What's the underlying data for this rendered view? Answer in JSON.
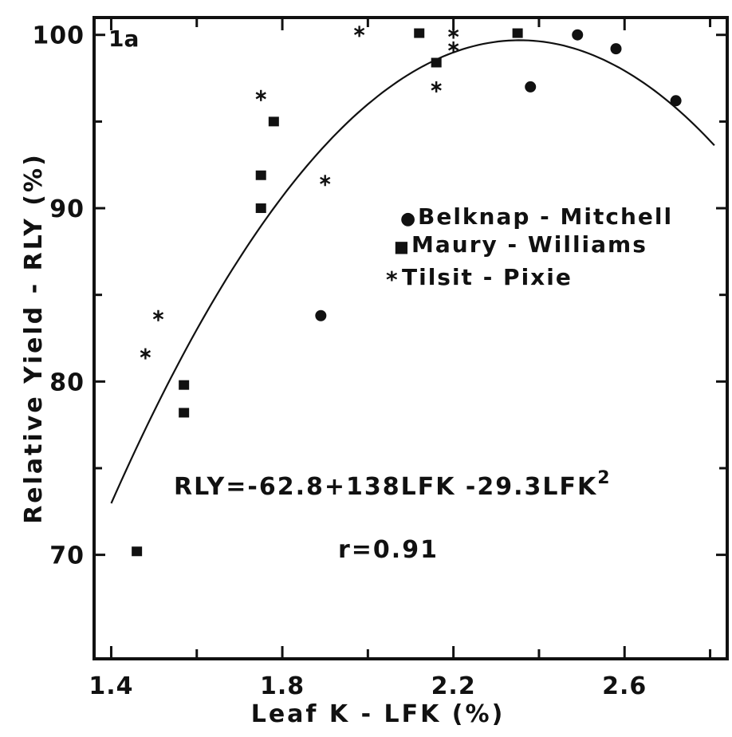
{
  "chart_data": {
    "type": "scatter",
    "panel_label": "1a",
    "xlabel": "Leaf K - LFK (%)",
    "ylabel": "Relative Yield - RLY (%)",
    "xlim": [
      1.36,
      2.84
    ],
    "ylim": [
      64,
      101
    ],
    "x_ticks": [
      "1.4",
      "1.8",
      "2.2",
      "2.6"
    ],
    "x_tick_values": [
      1.4,
      1.8,
      2.2,
      2.6
    ],
    "y_ticks": [
      "70",
      "80",
      "90",
      "100"
    ],
    "y_tick_values": [
      70,
      80,
      90,
      100
    ],
    "series": [
      {
        "name": "Belknap - Mitchell",
        "marker": "circle",
        "points": [
          [
            1.89,
            83.8
          ],
          [
            2.38,
            97.0
          ],
          [
            2.49,
            100.0
          ],
          [
            2.58,
            99.2
          ],
          [
            2.72,
            96.2
          ]
        ]
      },
      {
        "name": "Maury - Williams",
        "marker": "square",
        "points": [
          [
            1.46,
            70.2
          ],
          [
            1.57,
            78.2
          ],
          [
            1.57,
            79.8
          ],
          [
            1.75,
            90.0
          ],
          [
            1.75,
            91.9
          ],
          [
            1.78,
            95.0
          ],
          [
            2.12,
            100.1
          ],
          [
            2.16,
            98.4
          ],
          [
            2.35,
            100.1
          ]
        ]
      },
      {
        "name": "Tilsit - Pixie",
        "marker": "star",
        "points": [
          [
            1.48,
            81.6
          ],
          [
            1.51,
            83.8
          ],
          [
            1.75,
            96.5
          ],
          [
            1.9,
            91.6
          ],
          [
            1.98,
            100.2
          ],
          [
            2.16,
            97.0
          ],
          [
            2.2,
            99.3
          ],
          [
            2.2,
            100.1
          ]
        ]
      }
    ],
    "regression": {
      "intercept": -62.8,
      "linear": 138,
      "quadratic": -29.3,
      "x_range": [
        1.4,
        2.81
      ]
    },
    "equation_text": {
      "main": "RLY=-62.8+138LFK -29.3LFK",
      "superscript": "2"
    },
    "r_text": "r=0.91",
    "grid": false,
    "legend_position": "upper-right inside"
  },
  "legend_markers": {
    "belknap": "●",
    "maury": "■",
    "tilsit": "*"
  }
}
